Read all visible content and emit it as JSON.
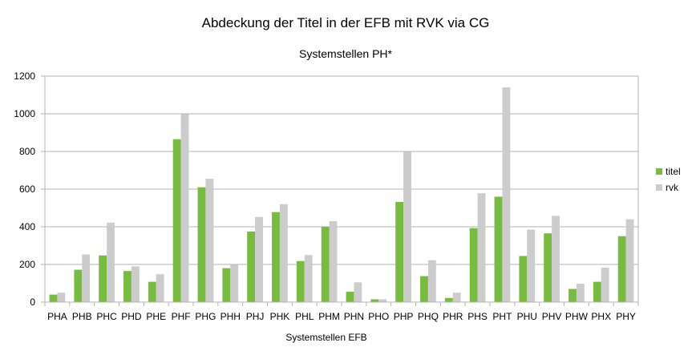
{
  "chart_data": {
    "type": "bar",
    "title": "Abdeckung der Titel in der EFB mit RVK via CG",
    "subtitle": "Systemstellen PH*",
    "xlabel": "Systemstellen EFB",
    "ylabel": "",
    "ylim": [
      0,
      1200
    ],
    "yticks": [
      0,
      200,
      400,
      600,
      800,
      1000,
      1200
    ],
    "grid": true,
    "legend_position": "right",
    "categories": [
      "PHA",
      "PHB",
      "PHC",
      "PHD",
      "PHE",
      "PHF",
      "PHG",
      "PHH",
      "PHJ",
      "PHK",
      "PHL",
      "PHM",
      "PHN",
      "PHO",
      "PHP",
      "PHQ",
      "PHR",
      "PHS",
      "PHT",
      "PHU",
      "PHV",
      "PHW",
      "PHX",
      "PHY"
    ],
    "series": [
      {
        "name": "titel",
        "color": "#77bc41",
        "values": [
          40,
          172,
          248,
          165,
          108,
          865,
          610,
          180,
          375,
          478,
          218,
          400,
          55,
          15,
          532,
          138,
          22,
          393,
          560,
          245,
          365,
          70,
          108,
          350
        ]
      },
      {
        "name": "rvk",
        "color": "#cccccc",
        "values": [
          50,
          253,
          422,
          190,
          148,
          998,
          655,
          198,
          452,
          520,
          250,
          430,
          105,
          15,
          798,
          222,
          50,
          578,
          1140,
          385,
          458,
          98,
          183,
          440
        ]
      }
    ]
  }
}
